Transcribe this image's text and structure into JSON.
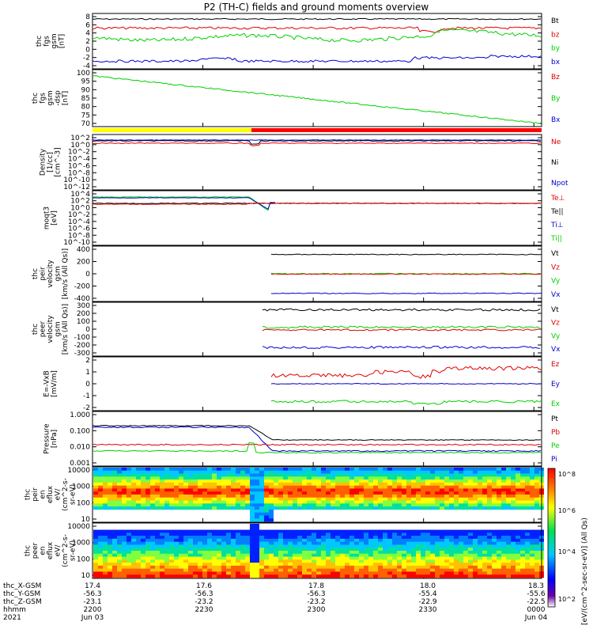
{
  "title": "P2 (TH-C) fields and ground moments overview",
  "colors": {
    "black": "#000000",
    "red": "#e00000",
    "green": "#00d000",
    "blue": "#0000d0",
    "yellow": "#ffff00"
  },
  "footer": {
    "rows": [
      "thc_X-GSM",
      "thc_Y-GSM",
      "thc_Z-GSM",
      "hhmm",
      "2021"
    ],
    "cols": [
      [
        "17.4",
        "-56.3",
        "-23.1",
        "2200",
        "Jun 03"
      ],
      [
        "17.6",
        "-56.3",
        "-23.2",
        "2230",
        ""
      ],
      [
        "17.8",
        "-56.3",
        "-23.2",
        "2300",
        ""
      ],
      [
        "18.0",
        "-55.4",
        "-22.9",
        "2330",
        ""
      ],
      [
        "18.3",
        "-55.6",
        "-22.5",
        "0000",
        "Jun 04"
      ]
    ]
  },
  "colorbar": {
    "label": "[eV/(cm^2-sec-sr-eV)] (All Qs)",
    "ticks": [
      "10^8",
      "10^6",
      "10^4",
      "10^2"
    ]
  },
  "chart_data": [
    {
      "id": "p1",
      "type": "line",
      "ylabel": [
        "thc",
        "fgs",
        "gsm",
        "[nT]"
      ],
      "yticks": [
        "8",
        "6",
        "4",
        "2",
        "0",
        "-2",
        "-4"
      ],
      "series": [
        {
          "name": "Bt",
          "color": "black",
          "level": 7.2
        },
        {
          "name": "bz",
          "color": "red",
          "level": 5.2
        },
        {
          "name": "by",
          "color": "green",
          "level": 3.0
        },
        {
          "name": "bx",
          "color": "blue",
          "level": -3.0
        }
      ]
    },
    {
      "id": "p2",
      "type": "line",
      "ylabel": [
        "thc",
        "fgs",
        "gsm",
        "-dsp",
        "[nT]"
      ],
      "yticks": [
        "100",
        "95",
        "90",
        "85",
        "80",
        "75",
        "70"
      ],
      "series": [
        {
          "name": "Bz",
          "color": "red"
        },
        {
          "name": "By",
          "color": "green",
          "from": 98,
          "to": 67
        },
        {
          "name": "Bx",
          "color": "blue"
        }
      ]
    },
    {
      "id": "p3",
      "type": "line",
      "ylabel": [
        "Density",
        "[1/cc]",
        "[cm^-3]"
      ],
      "yticks": [
        "10^2",
        "10^0",
        "10^-2",
        "10^-4",
        "10^-6",
        "10^-8",
        "10^-10",
        "10^-12"
      ],
      "series": [
        {
          "name": "Ne",
          "color": "red"
        },
        {
          "name": "Ni",
          "color": "black"
        },
        {
          "name": "Npot",
          "color": "blue"
        }
      ]
    },
    {
      "id": "p4",
      "type": "line",
      "ylabel": [
        "moqt3",
        "[eV]"
      ],
      "yticks": [
        "10^4",
        "10^2",
        "10^0",
        "10^-2",
        "10^-4",
        "10^-6",
        "10^-8",
        "10^-10"
      ],
      "series": [
        {
          "name": "Te⊥",
          "color": "red"
        },
        {
          "name": "Te||",
          "color": "black"
        },
        {
          "name": "Ti⊥",
          "color": "blue"
        },
        {
          "name": "Ti||",
          "color": "green"
        }
      ]
    },
    {
      "id": "p5",
      "type": "line",
      "ylabel": [
        "thc",
        "peir",
        "velocity",
        "gsm",
        "[km/s (All Qs)]"
      ],
      "yticks": [
        "400",
        "200",
        "0",
        "-200",
        "-400"
      ],
      "series": [
        {
          "name": "Vt",
          "color": "black",
          "level": 320
        },
        {
          "name": "Vz",
          "color": "red",
          "level": 0
        },
        {
          "name": "Vy",
          "color": "green",
          "level": 5
        },
        {
          "name": "Vx",
          "color": "blue",
          "level": -320
        }
      ]
    },
    {
      "id": "p6",
      "type": "line",
      "ylabel": [
        "thc",
        "peer",
        "velocity",
        "gsm",
        "[km/s (All Qs)]"
      ],
      "yticks": [
        "300",
        "200",
        "100",
        "0",
        "-100",
        "-200",
        "-300"
      ],
      "series": [
        {
          "name": "Vt",
          "color": "black",
          "level": 250
        },
        {
          "name": "Vz",
          "color": "red",
          "level": 0
        },
        {
          "name": "Vy",
          "color": "green",
          "level": 20
        },
        {
          "name": "Vx",
          "color": "blue",
          "level": -230
        }
      ]
    },
    {
      "id": "p7",
      "type": "line",
      "ylabel": [
        "E=-VxB",
        "[mV/m]"
      ],
      "yticks": [
        "2",
        "1",
        "0",
        "-1",
        "-2"
      ],
      "series": [
        {
          "name": "Ez",
          "color": "red",
          "level": 0.9
        },
        {
          "name": "Ey",
          "color": "blue",
          "level": 0
        },
        {
          "name": "Ex",
          "color": "green",
          "level": -1.5
        }
      ]
    },
    {
      "id": "p8",
      "type": "line",
      "ylabel": [
        "Pressure",
        "[nPa]"
      ],
      "yticks": [
        "1.000",
        "0.100",
        "0.010",
        "0.001"
      ],
      "series": [
        {
          "name": "Pt",
          "color": "black"
        },
        {
          "name": "Pb",
          "color": "red"
        },
        {
          "name": "Pe",
          "color": "green"
        },
        {
          "name": "Pi",
          "color": "blue"
        }
      ]
    },
    {
      "id": "p9",
      "type": "heatmap",
      "ylabel": [
        "thc",
        "peir",
        "en",
        "eflux",
        "eV/",
        "(cm^2-s-",
        "sr-eV)"
      ],
      "yticks": [
        "10000",
        "1000",
        "100",
        "10"
      ]
    },
    {
      "id": "p10",
      "type": "heatmap",
      "ylabel": [
        "thc",
        "peer",
        "en",
        "eflux",
        "eV/",
        "(cm^2-s-",
        "sr-eV)"
      ],
      "yticks": [
        "10000",
        "1000",
        "100",
        "10"
      ]
    }
  ]
}
